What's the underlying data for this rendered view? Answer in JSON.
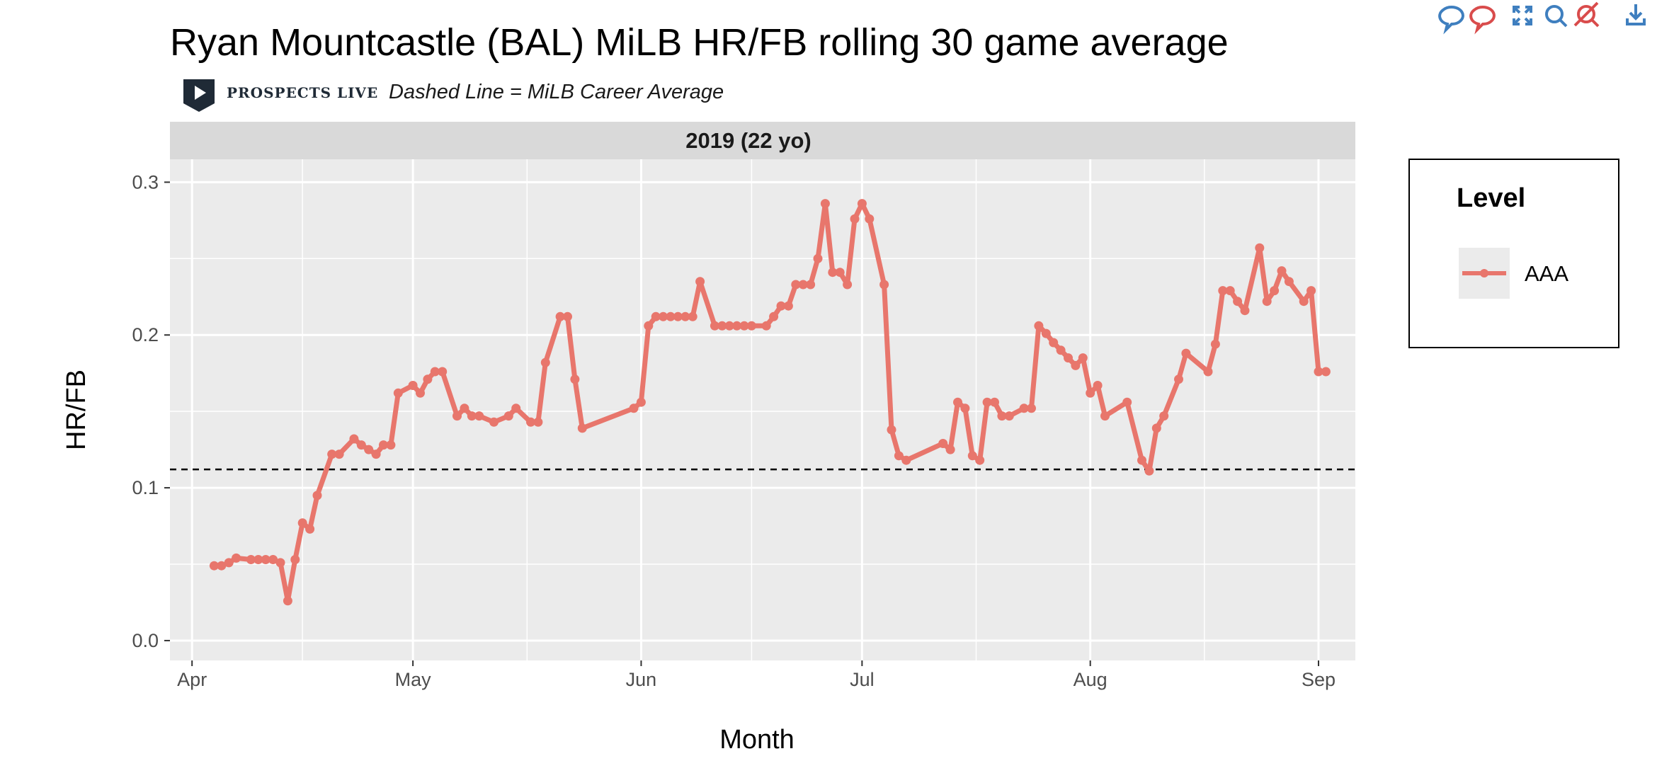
{
  "chart_data": {
    "type": "line",
    "title": "Ryan Mountcastle (BAL) MiLB HR/FB rolling 30 game average",
    "subtitle": "Dashed Line = MiLB Career Average",
    "brand": "PROSPECTS LIVE",
    "facet_label": "2019 (22 yo)",
    "xlabel": "Month",
    "ylabel": "HR/FB",
    "xlim": [
      "2019-03-29",
      "2019-09-06"
    ],
    "ylim": [
      -0.013,
      0.315
    ],
    "x_ticks": [
      {
        "date": "2019-04-01",
        "label": "Apr"
      },
      {
        "date": "2019-05-01",
        "label": "May"
      },
      {
        "date": "2019-06-01",
        "label": "Jun"
      },
      {
        "date": "2019-07-01",
        "label": "Jul"
      },
      {
        "date": "2019-08-01",
        "label": "Aug"
      },
      {
        "date": "2019-09-01",
        "label": "Sep"
      }
    ],
    "y_ticks": [
      0.0,
      0.1,
      0.2,
      0.3
    ],
    "y_tick_labels": [
      "0.0",
      "0.1",
      "0.2",
      "0.3"
    ],
    "grid": true,
    "reference_line": {
      "y": 0.112,
      "style": "dashed",
      "color": "#000000"
    },
    "legend": {
      "title": "Level",
      "position": "right"
    },
    "series": [
      {
        "name": "AAA",
        "color": "#E8766C",
        "points": [
          [
            "2019-04-04",
            0.049
          ],
          [
            "2019-04-05",
            0.049
          ],
          [
            "2019-04-06",
            0.051
          ],
          [
            "2019-04-07",
            0.054
          ],
          [
            "2019-04-09",
            0.053
          ],
          [
            "2019-04-10",
            0.053
          ],
          [
            "2019-04-11",
            0.053
          ],
          [
            "2019-04-12",
            0.053
          ],
          [
            "2019-04-13",
            0.051
          ],
          [
            "2019-04-14",
            0.026
          ],
          [
            "2019-04-15",
            0.053
          ],
          [
            "2019-04-16",
            0.077
          ],
          [
            "2019-04-17",
            0.073
          ],
          [
            "2019-04-18",
            0.095
          ],
          [
            "2019-04-20",
            0.122
          ],
          [
            "2019-04-21",
            0.122
          ],
          [
            "2019-04-23",
            0.132
          ],
          [
            "2019-04-24",
            0.128
          ],
          [
            "2019-04-25",
            0.125
          ],
          [
            "2019-04-26",
            0.122
          ],
          [
            "2019-04-27",
            0.128
          ],
          [
            "2019-04-28",
            0.128
          ],
          [
            "2019-04-29",
            0.162
          ],
          [
            "2019-05-01",
            0.167
          ],
          [
            "2019-05-02",
            0.162
          ],
          [
            "2019-05-03",
            0.171
          ],
          [
            "2019-05-04",
            0.176
          ],
          [
            "2019-05-05",
            0.176
          ],
          [
            "2019-05-07",
            0.147
          ],
          [
            "2019-05-08",
            0.152
          ],
          [
            "2019-05-09",
            0.147
          ],
          [
            "2019-05-10",
            0.147
          ],
          [
            "2019-05-12",
            0.143
          ],
          [
            "2019-05-14",
            0.147
          ],
          [
            "2019-05-15",
            0.152
          ],
          [
            "2019-05-17",
            0.143
          ],
          [
            "2019-05-18",
            0.143
          ],
          [
            "2019-05-19",
            0.182
          ],
          [
            "2019-05-21",
            0.212
          ],
          [
            "2019-05-22",
            0.212
          ],
          [
            "2019-05-23",
            0.171
          ],
          [
            "2019-05-24",
            0.139
          ],
          [
            "2019-05-31",
            0.152
          ],
          [
            "2019-06-01",
            0.156
          ],
          [
            "2019-06-02",
            0.206
          ],
          [
            "2019-06-03",
            0.212
          ],
          [
            "2019-06-04",
            0.212
          ],
          [
            "2019-06-05",
            0.212
          ],
          [
            "2019-06-06",
            0.212
          ],
          [
            "2019-06-07",
            0.212
          ],
          [
            "2019-06-08",
            0.212
          ],
          [
            "2019-06-09",
            0.235
          ],
          [
            "2019-06-11",
            0.206
          ],
          [
            "2019-06-12",
            0.206
          ],
          [
            "2019-06-13",
            0.206
          ],
          [
            "2019-06-14",
            0.206
          ],
          [
            "2019-06-15",
            0.206
          ],
          [
            "2019-06-16",
            0.206
          ],
          [
            "2019-06-18",
            0.206
          ],
          [
            "2019-06-19",
            0.212
          ],
          [
            "2019-06-20",
            0.219
          ],
          [
            "2019-06-21",
            0.219
          ],
          [
            "2019-06-22",
            0.233
          ],
          [
            "2019-06-23",
            0.233
          ],
          [
            "2019-06-24",
            0.233
          ],
          [
            "2019-06-25",
            0.25
          ],
          [
            "2019-06-26",
            0.286
          ],
          [
            "2019-06-27",
            0.241
          ],
          [
            "2019-06-28",
            0.241
          ],
          [
            "2019-06-29",
            0.233
          ],
          [
            "2019-06-30",
            0.276
          ],
          [
            "2019-07-01",
            0.286
          ],
          [
            "2019-07-02",
            0.276
          ],
          [
            "2019-07-04",
            0.233
          ],
          [
            "2019-07-05",
            0.138
          ],
          [
            "2019-07-06",
            0.121
          ],
          [
            "2019-07-07",
            0.118
          ],
          [
            "2019-07-12",
            0.129
          ],
          [
            "2019-07-13",
            0.125
          ],
          [
            "2019-07-14",
            0.156
          ],
          [
            "2019-07-15",
            0.152
          ],
          [
            "2019-07-16",
            0.121
          ],
          [
            "2019-07-17",
            0.118
          ],
          [
            "2019-07-18",
            0.156
          ],
          [
            "2019-07-19",
            0.156
          ],
          [
            "2019-07-20",
            0.147
          ],
          [
            "2019-07-21",
            0.147
          ],
          [
            "2019-07-23",
            0.152
          ],
          [
            "2019-07-24",
            0.152
          ],
          [
            "2019-07-25",
            0.206
          ],
          [
            "2019-07-26",
            0.201
          ],
          [
            "2019-07-27",
            0.195
          ],
          [
            "2019-07-28",
            0.19
          ],
          [
            "2019-07-29",
            0.185
          ],
          [
            "2019-07-30",
            0.18
          ],
          [
            "2019-07-31",
            0.185
          ],
          [
            "2019-08-01",
            0.162
          ],
          [
            "2019-08-02",
            0.167
          ],
          [
            "2019-08-03",
            0.147
          ],
          [
            "2019-08-06",
            0.156
          ],
          [
            "2019-08-08",
            0.118
          ],
          [
            "2019-08-09",
            0.111
          ],
          [
            "2019-08-10",
            0.139
          ],
          [
            "2019-08-11",
            0.147
          ],
          [
            "2019-08-13",
            0.171
          ],
          [
            "2019-08-14",
            0.188
          ],
          [
            "2019-08-17",
            0.176
          ],
          [
            "2019-08-18",
            0.194
          ],
          [
            "2019-08-19",
            0.229
          ],
          [
            "2019-08-20",
            0.229
          ],
          [
            "2019-08-21",
            0.222
          ],
          [
            "2019-08-22",
            0.216
          ],
          [
            "2019-08-24",
            0.257
          ],
          [
            "2019-08-25",
            0.222
          ],
          [
            "2019-08-26",
            0.229
          ],
          [
            "2019-08-27",
            0.242
          ],
          [
            "2019-08-28",
            0.235
          ],
          [
            "2019-08-30",
            0.222
          ],
          [
            "2019-08-31",
            0.229
          ],
          [
            "2019-09-01",
            0.176
          ],
          [
            "2019-09-02",
            0.176
          ]
        ]
      }
    ]
  },
  "toolbar": {
    "icons": [
      "show-closest-icon",
      "compare-data-icon",
      "autoscale-icon",
      "zoom-icon",
      "toggle-spike-lines-icon",
      "download-plot-icon"
    ],
    "comment_color": "#3f7fbf",
    "accent_color": "#d94c4c"
  }
}
